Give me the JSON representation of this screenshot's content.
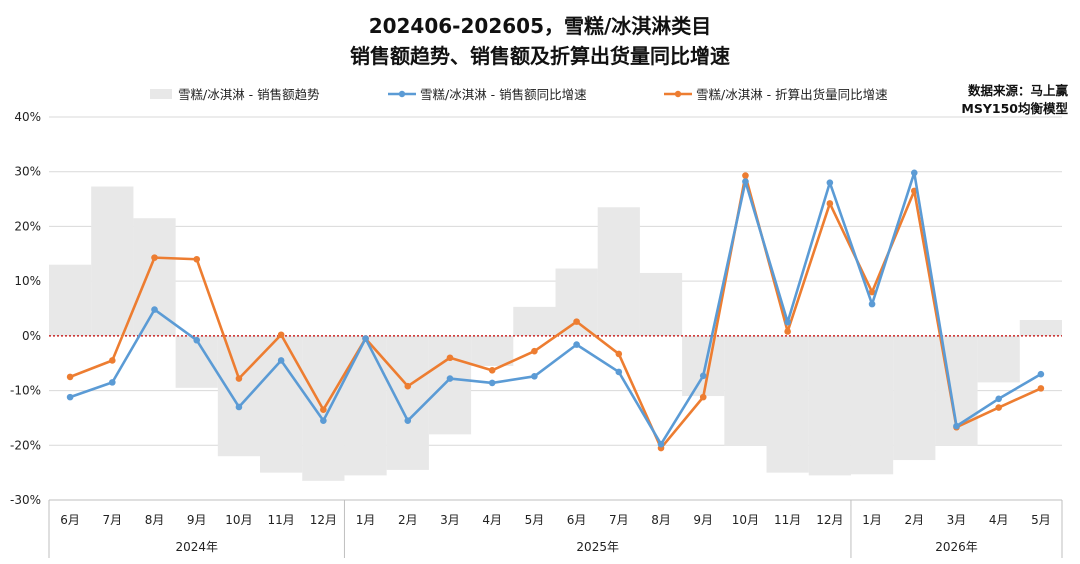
{
  "title_line1": "202406-202605，雪糕/冰淇淋类目",
  "title_line2": "销售额趋势、销售额及折算出货量同比增速",
  "source_line1": "数据来源：马上赢",
  "source_line2": "MSY150均衡模型",
  "colors": {
    "bar": "#e8e8e8",
    "series_sales": "#5b9bd5",
    "series_volume": "#ed7d31",
    "zero_line": "#c00000",
    "grid": "#d9d9d9"
  },
  "chart_data": {
    "type": "line",
    "categories": [
      "6月",
      "7月",
      "8月",
      "9月",
      "10月",
      "11月",
      "12月",
      "1月",
      "2月",
      "3月",
      "4月",
      "5月",
      "6月",
      "7月",
      "8月",
      "9月",
      "10月",
      "11月",
      "12月",
      "1月",
      "2月",
      "3月",
      "4月",
      "5月"
    ],
    "year_groups": [
      {
        "label": "2024年",
        "count": 7
      },
      {
        "label": "2025年",
        "count": 12
      },
      {
        "label": "2026年",
        "count": 5
      }
    ],
    "ylim": [
      -30,
      40
    ],
    "yticks": [
      -30,
      -20,
      -10,
      0,
      10,
      20,
      30,
      40
    ],
    "ytick_labels": [
      "-30%",
      "-20%",
      "-10%",
      "0%",
      "10%",
      "20%",
      "30%",
      "40%"
    ],
    "series": [
      {
        "name": "雪糕/冰淇淋 - 销售额趋势",
        "kind": "bar",
        "values": [
          13,
          27.3,
          21.5,
          -9.5,
          -22,
          -25,
          -26.5,
          -25.5,
          -24.5,
          -18,
          -5.5,
          5.3,
          12.3,
          23.5,
          11.5,
          -11,
          -20,
          -25,
          -25.5,
          -25.3,
          -22.7,
          -20,
          -8.5,
          2.9
        ]
      },
      {
        "name": "雪糕/冰淇淋 - 销售额同比增速",
        "kind": "line",
        "values": [
          -11.2,
          -8.5,
          4.8,
          -0.8,
          -13,
          -4.5,
          -15.5,
          -0.5,
          -15.5,
          -7.8,
          -8.6,
          -7.4,
          -1.6,
          -6.6,
          -19.8,
          -7.3,
          28.2,
          2.5,
          28,
          5.8,
          29.8,
          -16.5,
          -11.5,
          -7
        ]
      },
      {
        "name": "雪糕/冰淇淋 - 折算出货量同比增速",
        "kind": "line",
        "values": [
          -7.5,
          -4.5,
          14.3,
          14,
          -7.8,
          0.2,
          -13.5,
          -0.5,
          -9.2,
          -4,
          -6.3,
          -2.8,
          2.6,
          -3.3,
          -20.5,
          -11.2,
          29.3,
          0.8,
          24.2,
          8,
          26.5,
          -16.7,
          -13.1,
          -9.6
        ]
      }
    ]
  }
}
